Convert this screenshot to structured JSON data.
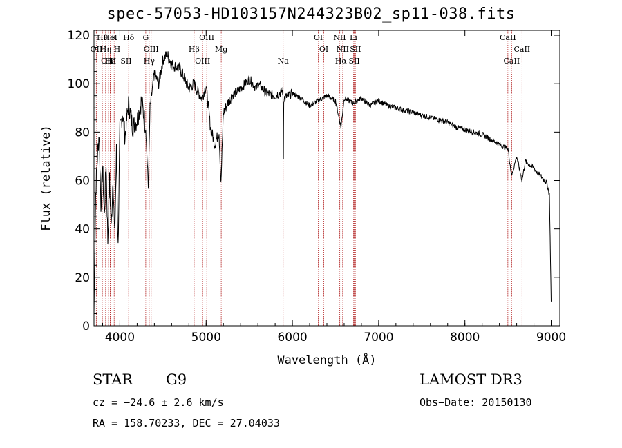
{
  "chart_data": {
    "type": "line",
    "title": "spec-57053-HD103157N244323B02_sp11-038.fits",
    "xlabel": "Wavelength (Å)",
    "ylabel": "Flux (relative)",
    "xlim": [
      3700,
      9100
    ],
    "ylim": [
      0,
      122
    ],
    "xticks": [
      4000,
      5000,
      6000,
      7000,
      8000,
      9000
    ],
    "yticks": [
      0,
      20,
      40,
      60,
      80,
      100,
      120
    ],
    "x_tick_labels": [
      "4000",
      "5000",
      "6000",
      "7000",
      "8000",
      "9000"
    ],
    "y_tick_labels": [
      "0",
      "20",
      "40",
      "60",
      "80",
      "100",
      "120"
    ],
    "series": [
      {
        "name": "spectrum",
        "x": [
          3700,
          3720,
          3740,
          3760,
          3780,
          3800,
          3820,
          3840,
          3860,
          3880,
          3900,
          3920,
          3940,
          3960,
          3980,
          4000,
          4030,
          4060,
          4100,
          4150,
          4200,
          4250,
          4300,
          4330,
          4350,
          4400,
          4450,
          4500,
          4550,
          4600,
          4700,
          4800,
          4861,
          4900,
          4950,
          5000,
          5050,
          5100,
          5150,
          5172,
          5200,
          5250,
          5300,
          5400,
          5500,
          5580,
          5600,
          5700,
          5800,
          5890,
          5896,
          5900,
          6000,
          6100,
          6200,
          6300,
          6400,
          6500,
          6563,
          6600,
          6700,
          6800,
          6900,
          7000,
          7100,
          7200,
          7300,
          7400,
          7500,
          7600,
          7700,
          7800,
          7900,
          8000,
          8100,
          8200,
          8300,
          8400,
          8500,
          8542,
          8600,
          8662,
          8700,
          8800,
          8900,
          8950,
          8980,
          9000
        ],
        "y": [
          5,
          55,
          70,
          80,
          50,
          66,
          45,
          68,
          35,
          60,
          40,
          62,
          36,
          72,
          32,
          80,
          88,
          78,
          92,
          82,
          85,
          93,
          82,
          57,
          90,
          104,
          100,
          110,
          112,
          108,
          106,
          98,
          100,
          97,
          94,
          99,
          82,
          75,
          80,
          58,
          88,
          92,
          95,
          98,
          102,
          98,
          100,
          96,
          95,
          97,
          70,
          94,
          96,
          94,
          91,
          93,
          95,
          93,
          82,
          94,
          92,
          94,
          91,
          93,
          91,
          90,
          89,
          88,
          87,
          86,
          85,
          84,
          82,
          81,
          80,
          79,
          77,
          75,
          73,
          62,
          70,
          60,
          68,
          65,
          61,
          59,
          54,
          10
        ]
      }
    ],
    "line_markers": [
      {
        "label": "Hθ",
        "wavelength": 3797
      },
      {
        "label": "OII",
        "wavelength": 3727
      },
      {
        "label": "OIII",
        "wavelength": 3869
      },
      {
        "label": "K",
        "wavelength": 3934
      },
      {
        "label": "H",
        "wavelength": 3968
      },
      {
        "label": "Hε",
        "wavelength": 3889
      },
      {
        "label": "HeI",
        "wavelength": 3889
      },
      {
        "label": "Hη",
        "wavelength": 3835
      },
      {
        "label": "SII",
        "wavelength": 4072
      },
      {
        "label": "Hδ",
        "wavelength": 4102
      },
      {
        "label": "OIII",
        "wavelength": 4363
      },
      {
        "label": "Hγ",
        "wavelength": 4340
      },
      {
        "label": "G",
        "wavelength": 4300
      },
      {
        "label": "Hβ",
        "wavelength": 4861
      },
      {
        "label": "OIII",
        "wavelength": 4959
      },
      {
        "label": "OIII",
        "wavelength": 5007
      },
      {
        "label": "Mg",
        "wavelength": 5175
      },
      {
        "label": "Na",
        "wavelength": 5893
      },
      {
        "label": "OI",
        "wavelength": 6300
      },
      {
        "label": "OI",
        "wavelength": 6364
      },
      {
        "label": "Hα",
        "wavelength": 6563
      },
      {
        "label": "NII",
        "wavelength": 6548
      },
      {
        "label": "NII",
        "wavelength": 6583
      },
      {
        "label": "SII",
        "wavelength": 6717
      },
      {
        "label": "Li",
        "wavelength": 6708
      },
      {
        "label": "SII",
        "wavelength": 6731
      },
      {
        "label": "CaII",
        "wavelength": 8542
      },
      {
        "label": "CaII",
        "wavelength": 8498
      },
      {
        "label": "CaII",
        "wavelength": 8662
      }
    ]
  },
  "info": {
    "class_label": "STAR",
    "subclass": "G9",
    "survey": "LAMOST DR3",
    "cz": "cz = −24.6 ± 2.6 km/s",
    "obs_date": "Obs−Date: 20150130",
    "coords": "RA = 158.70233, DEC =  27.04033"
  },
  "colors": {
    "spectrum": "#000000",
    "marker_line": "#b22222",
    "axis": "#000000"
  }
}
